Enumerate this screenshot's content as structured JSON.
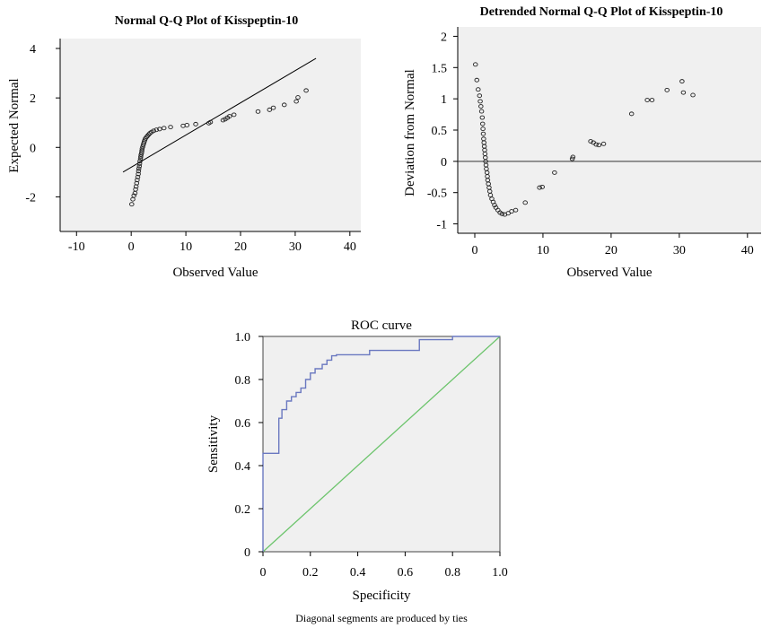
{
  "chart_data": [
    {
      "type": "scatter",
      "title": "Normal Q-Q Plot of Kisspeptin-10",
      "xlabel": "Observed Value",
      "ylabel": "Expected Normal",
      "xlim": [
        -13,
        42
      ],
      "ylim": [
        -3.4,
        4.4
      ],
      "xticks": [
        -10,
        0,
        10,
        20,
        30,
        40
      ],
      "yticks": [
        -2,
        0,
        2,
        4
      ],
      "xtick_labels": [
        "-10",
        "0",
        "10",
        "20",
        "30",
        "40"
      ],
      "ytick_labels": [
        "-2",
        "0",
        "2",
        "4"
      ],
      "reference_line": {
        "x": [
          -1.5,
          33.8
        ],
        "y": [
          -1.0,
          3.6
        ]
      },
      "points": [
        [
          0.1,
          -2.3
        ],
        [
          0.3,
          -2.1
        ],
        [
          0.5,
          -1.95
        ],
        [
          0.7,
          -1.85
        ],
        [
          0.8,
          -1.7
        ],
        [
          0.9,
          -1.58
        ],
        [
          1.0,
          -1.45
        ],
        [
          1.1,
          -1.32
        ],
        [
          1.2,
          -1.2
        ],
        [
          1.3,
          -1.08
        ],
        [
          1.35,
          -0.96
        ],
        [
          1.4,
          -0.86
        ],
        [
          1.5,
          -0.76
        ],
        [
          1.55,
          -0.66
        ],
        [
          1.6,
          -0.56
        ],
        [
          1.7,
          -0.46
        ],
        [
          1.75,
          -0.38
        ],
        [
          1.8,
          -0.3
        ],
        [
          1.9,
          -0.22
        ],
        [
          1.95,
          -0.14
        ],
        [
          2.0,
          -0.06
        ],
        [
          2.1,
          0.02
        ],
        [
          2.2,
          0.1
        ],
        [
          2.3,
          0.17
        ],
        [
          2.4,
          0.24
        ],
        [
          2.5,
          0.3
        ],
        [
          2.6,
          0.36
        ],
        [
          2.8,
          0.42
        ],
        [
          3.0,
          0.47
        ],
        [
          3.2,
          0.52
        ],
        [
          3.4,
          0.57
        ],
        [
          3.7,
          0.62
        ],
        [
          4.1,
          0.67
        ],
        [
          4.6,
          0.71
        ],
        [
          5.2,
          0.74
        ],
        [
          6.0,
          0.78
        ],
        [
          7.2,
          0.82
        ],
        [
          9.5,
          0.87
        ],
        [
          10.2,
          0.9
        ],
        [
          11.8,
          0.94
        ],
        [
          14.2,
          0.98
        ],
        [
          14.5,
          1.02
        ],
        [
          16.8,
          1.1
        ],
        [
          17.2,
          1.14
        ],
        [
          17.6,
          1.2
        ],
        [
          18.0,
          1.26
        ],
        [
          18.8,
          1.32
        ],
        [
          23.2,
          1.45
        ],
        [
          25.3,
          1.52
        ],
        [
          26.0,
          1.6
        ],
        [
          28.0,
          1.72
        ],
        [
          30.2,
          1.86
        ],
        [
          30.5,
          2.02
        ],
        [
          32.0,
          2.3
        ]
      ]
    },
    {
      "type": "scatter",
      "title": "Detrended Normal Q-Q Plot of Kisspeptin-10",
      "xlabel": "Observed Value",
      "ylabel": "Deviation from Normal",
      "xlim": [
        -2.5,
        42
      ],
      "ylim": [
        -1.15,
        2.15
      ],
      "xticks": [
        0,
        10,
        20,
        30,
        40
      ],
      "yticks": [
        -1,
        -0.5,
        0,
        0.5,
        1,
        1.5,
        2
      ],
      "xtick_labels": [
        "0",
        "10",
        "20",
        "30",
        "40"
      ],
      "ytick_labels": [
        "-1",
        "-0.5",
        "0",
        "0.5",
        "1",
        "1.5",
        "2"
      ],
      "reference_y": 0,
      "points": [
        [
          0.1,
          1.55
        ],
        [
          0.3,
          1.3
        ],
        [
          0.5,
          1.15
        ],
        [
          0.7,
          1.05
        ],
        [
          0.8,
          0.96
        ],
        [
          0.9,
          0.88
        ],
        [
          1.0,
          0.8
        ],
        [
          1.1,
          0.7
        ],
        [
          1.15,
          0.6
        ],
        [
          1.2,
          0.52
        ],
        [
          1.25,
          0.44
        ],
        [
          1.3,
          0.36
        ],
        [
          1.35,
          0.3
        ],
        [
          1.4,
          0.24
        ],
        [
          1.45,
          0.18
        ],
        [
          1.5,
          0.12
        ],
        [
          1.55,
          0.06
        ],
        [
          1.6,
          0.0
        ],
        [
          1.65,
          -0.06
        ],
        [
          1.7,
          -0.12
        ],
        [
          1.8,
          -0.18
        ],
        [
          1.85,
          -0.24
        ],
        [
          1.9,
          -0.3
        ],
        [
          2.0,
          -0.36
        ],
        [
          2.1,
          -0.42
        ],
        [
          2.2,
          -0.48
        ],
        [
          2.3,
          -0.54
        ],
        [
          2.5,
          -0.6
        ],
        [
          2.7,
          -0.65
        ],
        [
          2.9,
          -0.7
        ],
        [
          3.1,
          -0.74
        ],
        [
          3.4,
          -0.78
        ],
        [
          3.7,
          -0.82
        ],
        [
          4.0,
          -0.84
        ],
        [
          4.4,
          -0.85
        ],
        [
          4.9,
          -0.83
        ],
        [
          5.4,
          -0.8
        ],
        [
          6.0,
          -0.78
        ],
        [
          7.4,
          -0.66
        ],
        [
          9.5,
          -0.42
        ],
        [
          9.9,
          -0.41
        ],
        [
          11.7,
          -0.18
        ],
        [
          14.3,
          0.04
        ],
        [
          14.4,
          0.07
        ],
        [
          17.0,
          0.32
        ],
        [
          17.4,
          0.3
        ],
        [
          17.8,
          0.27
        ],
        [
          18.2,
          0.26
        ],
        [
          18.9,
          0.28
        ],
        [
          23.0,
          0.76
        ],
        [
          25.3,
          0.98
        ],
        [
          26.0,
          0.98
        ],
        [
          28.2,
          1.14
        ],
        [
          30.4,
          1.28
        ],
        [
          30.6,
          1.1
        ],
        [
          32.0,
          1.06
        ]
      ]
    },
    {
      "type": "line",
      "title": "ROC curve",
      "xlabel": "Specificity",
      "ylabel": "Sensitivity",
      "xlim": [
        0,
        1.0
      ],
      "ylim": [
        0,
        1.0
      ],
      "xticks": [
        0,
        0.2,
        0.4,
        0.6,
        0.8,
        1.0
      ],
      "yticks": [
        0,
        0.2,
        0.4,
        0.6,
        0.8,
        1.0
      ],
      "xtick_labels": [
        "0",
        "0.2",
        "0.4",
        "0.6",
        "0.8",
        "1.0"
      ],
      "ytick_labels": [
        "0",
        "0.2",
        "0.4",
        "0.6",
        "0.8",
        "1.0"
      ],
      "note": "Diagonal segments are produced by ties",
      "series": [
        {
          "x": [
            0,
            0,
            0.067,
            0.067,
            0.08,
            0.08,
            0.1,
            0.1,
            0.12,
            0.12,
            0.14,
            0.14,
            0.16,
            0.16,
            0.18,
            0.18,
            0.2,
            0.2,
            0.22,
            0.22,
            0.25,
            0.25,
            0.27,
            0.27,
            0.29,
            0.29,
            0.31,
            0.31,
            0.45,
            0.45,
            0.66,
            0.66,
            0.8,
            0.8,
            1.0
          ],
          "y": [
            0,
            0.457,
            0.457,
            0.62,
            0.62,
            0.66,
            0.66,
            0.7,
            0.7,
            0.72,
            0.72,
            0.74,
            0.74,
            0.76,
            0.76,
            0.8,
            0.8,
            0.83,
            0.83,
            0.85,
            0.85,
            0.87,
            0.87,
            0.89,
            0.89,
            0.91,
            0.91,
            0.915,
            0.915,
            0.935,
            0.935,
            0.985,
            0.985,
            1.0,
            1.0
          ],
          "color": "#6a78c0"
        },
        {
          "x": [
            0,
            1.0
          ],
          "y": [
            0,
            1.0
          ],
          "color": "#6cc46c"
        }
      ]
    }
  ]
}
